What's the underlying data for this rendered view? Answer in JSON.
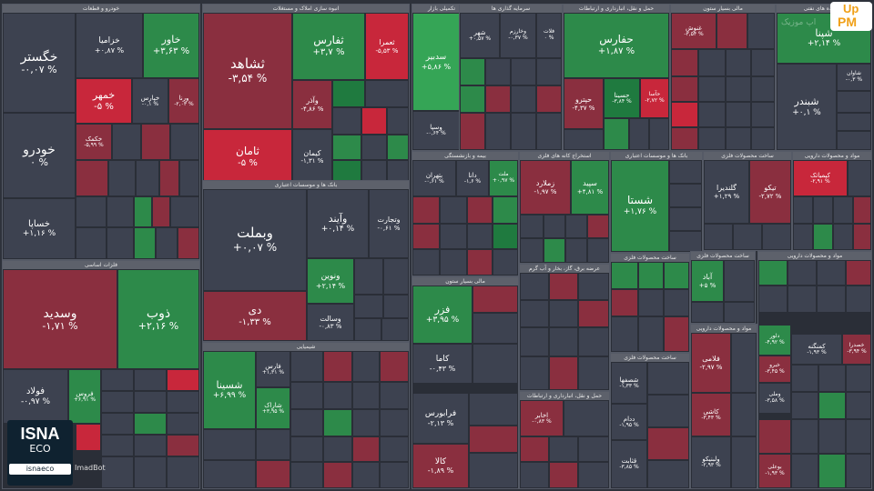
{
  "watermark": {
    "top": "Up",
    "bottom": "PM",
    "faded": "اپ موزیک"
  },
  "logo": {
    "name": "ISNA",
    "sub": "ECO",
    "handle": "isnaeco"
  },
  "bot_label": "ImadBot",
  "sections": [
    {
      "id": "s1",
      "title": "خودرو و قطعات"
    },
    {
      "id": "s2",
      "title": "انبوه سازی املاک و مستغلات"
    },
    {
      "id": "s3",
      "title": "تکمیلی بازار"
    },
    {
      "id": "s4",
      "title": "سرمایه گذاری ها"
    },
    {
      "id": "s5",
      "title": "حمل و نقل، انبارداری و ارتباطات"
    },
    {
      "id": "s6",
      "title": "مالی بسیار ستون"
    },
    {
      "id": "s7",
      "title": "بانک ها و موسسات اعتباری"
    },
    {
      "id": "s8",
      "title": "فلزات اساسی"
    },
    {
      "id": "s9",
      "title": "شیمیایی"
    },
    {
      "id": "s10",
      "title": "بیمه و بازنشستگی"
    },
    {
      "id": "s11",
      "title": "استخراج کانه های فلزی"
    },
    {
      "id": "s12",
      "title": "فرآورده های نفتی"
    },
    {
      "id": "s13",
      "title": "عرضه برق، گاز، بخار و آب گرم"
    },
    {
      "id": "s14",
      "title": "ساخت محصولات فلزی"
    },
    {
      "id": "s15",
      "title": "مواد و محصولات دارویی"
    }
  ],
  "cells": [
    {
      "sym": "خگستر",
      "pct": "-۰,۰۷ %"
    },
    {
      "sym": "خودرو",
      "pct": "۰ %"
    },
    {
      "sym": "خساپا",
      "pct": "+۱,۱۶ %"
    },
    {
      "sym": "خزامیا",
      "pct": "+۰,۸۷ %"
    },
    {
      "sym": "خاور",
      "pct": "+۳,۶۳ %"
    },
    {
      "sym": "خمهر",
      "pct": "-۵ %"
    },
    {
      "sym": "خپارس",
      "pct": "-۰,۱ %"
    },
    {
      "sym": "ورنا",
      "pct": "-۲,۰۳ %"
    },
    {
      "sym": "خکمک",
      "pct": "-۵,۹۹ %"
    },
    {
      "sym": "ثشاهد",
      "pct": "-۳,۵۴ %"
    },
    {
      "sym": "ثامان",
      "pct": "-۵ %"
    },
    {
      "sym": "ثفارس",
      "pct": "+۳,۷ %"
    },
    {
      "sym": "ثعمرا",
      "pct": "-۵,۵۳ %"
    },
    {
      "sym": "وآذر",
      "pct": "-۴,۸۶ %"
    },
    {
      "sym": "کیمان",
      "pct": "-۱,۳۱ %"
    },
    {
      "sym": "سدبیر",
      "pct": "+۵,۸۶ %"
    },
    {
      "sym": "وسپا",
      "pct": "-۰,۶۴ %"
    },
    {
      "sym": "شهر",
      "pct": "+۰,۵۷ %"
    },
    {
      "sym": "وخارزم",
      "pct": "-۰,۳۷ %"
    },
    {
      "sym": "فلات",
      "pct": "۰ %"
    },
    {
      "sym": "حفارس",
      "pct": "+۱,۸۷ %"
    },
    {
      "sym": "حسینا",
      "pct": "-۳,۸۴ %"
    },
    {
      "sym": "حپترو",
      "pct": "-۴,۳۷ %"
    },
    {
      "sym": "حآسا",
      "pct": "-۲,۷۲ %"
    },
    {
      "sym": "غنوش",
      "pct": "-۳,۵۴ %"
    },
    {
      "sym": "وبملت",
      "pct": "+۰,۰۷ %"
    },
    {
      "sym": "وآیند",
      "pct": "+۰,۱۴ %"
    },
    {
      "sym": "وتجارت",
      "pct": "-۰,۶۱ %"
    },
    {
      "sym": "دی",
      "pct": "-۱,۳۳ %"
    },
    {
      "sym": "ونوین",
      "pct": "+۲,۱۴ %"
    },
    {
      "sym": "وسالت",
      "pct": "-۰,۸۳ %"
    },
    {
      "sym": "وسدید",
      "pct": "-۱,۷۱ %"
    },
    {
      "sym": "ذوب",
      "pct": "+۲,۱۶ %"
    },
    {
      "sym": "فولاد",
      "pct": "-۰,۹۷ %"
    },
    {
      "sym": "فروس",
      "pct": "+۶,۹۱ %"
    },
    {
      "sym": "شسینا",
      "pct": "+۶,۹۹ %"
    },
    {
      "sym": "فارس",
      "pct": "+۱,۳۱ %"
    },
    {
      "sym": "شاراک",
      "pct": "+۳,۹۵ %"
    },
    {
      "sym": "فزر",
      "pct": "+۳,۹۵ %"
    },
    {
      "sym": "کاما",
      "pct": "-۰,۴۳ %"
    },
    {
      "sym": "فرابورس",
      "pct": "-۲,۱۳ %"
    },
    {
      "sym": "کالا",
      "pct": "-۱,۸۹ %"
    },
    {
      "sym": "بتهران",
      "pct": "-۰,۶۱ %"
    },
    {
      "sym": "دانا",
      "pct": "-۱,۶ %"
    },
    {
      "sym": "ملت",
      "pct": "+۰,۹۷ %"
    },
    {
      "sym": "زملارد",
      "pct": "-۱,۹۷ %"
    },
    {
      "sym": "سپید",
      "pct": "+۴,۸۱ %"
    },
    {
      "sym": "شستا",
      "pct": "+۱,۷۶ %"
    },
    {
      "sym": "شبندر",
      "pct": "+۰,۱ %"
    },
    {
      "sym": "شپنا",
      "pct": "+۲,۱۴ %"
    },
    {
      "sym": "شاوان",
      "pct": "-۰,۳ %"
    },
    {
      "sym": "تیکو",
      "pct": "-۲,۷۲ %"
    },
    {
      "sym": "کیمیاتک",
      "pct": "-۲,۹۱ %"
    },
    {
      "sym": "آباد",
      "pct": "+۵ %"
    },
    {
      "sym": "کمنگنه",
      "pct": "-۱,۹۳ %"
    },
    {
      "sym": "فلامی",
      "pct": "-۲,۹۷ %"
    },
    {
      "sym": "شصفها",
      "pct": "-۱,۳۳ %"
    },
    {
      "sym": "ددام",
      "pct": "-۱,۹۵ %"
    },
    {
      "sym": "خصدرا",
      "pct": "-۳,۹۴ %"
    },
    {
      "sym": "وملی",
      "pct": "-۳,۵۸ %"
    },
    {
      "sym": "اخابر",
      "pct": "-۰,۸۳ %"
    },
    {
      "sym": "قثابت",
      "pct": "-۳,۸۵ %"
    },
    {
      "sym": "بوعلی",
      "pct": "-۱,۹۳ %"
    },
    {
      "sym": "دلور",
      "pct": "-۴,۹۲ %"
    },
    {
      "sym": "کاشی",
      "pct": "-۳,۴۳ %"
    },
    {
      "sym": "ولبنیکو",
      "pct": "-۲,۹۳ %"
    },
    {
      "sym": "گلندیرا",
      "pct": "+۱,۲۹ %"
    },
    {
      "sym": "خبرو",
      "pct": "-۳,۴۵ %"
    }
  ]
}
